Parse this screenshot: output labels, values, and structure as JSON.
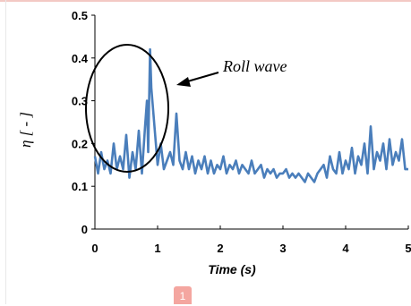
{
  "chart_data": {
    "type": "line",
    "title": "",
    "xlabel": "Time (s)",
    "ylabel": "η [ - ]",
    "xlim": [
      0,
      5
    ],
    "ylim": [
      0,
      0.5
    ],
    "xticks": [
      "0",
      "1",
      "2",
      "3",
      "4",
      "5"
    ],
    "yticks": [
      "0",
      "0.1",
      "0.2",
      "0.3",
      "0.4",
      "0.5"
    ],
    "grid": false,
    "legend": "none",
    "series": [
      {
        "color": "#4a7ebb",
        "x": [
          0,
          0.05,
          0.1,
          0.15,
          0.2,
          0.25,
          0.3,
          0.35,
          0.4,
          0.45,
          0.5,
          0.55,
          0.6,
          0.65,
          0.7,
          0.75,
          0.8,
          0.83,
          0.85,
          0.88,
          0.9,
          0.95,
          1.0,
          1.05,
          1.1,
          1.15,
          1.2,
          1.25,
          1.3,
          1.35,
          1.4,
          1.45,
          1.5,
          1.55,
          1.6,
          1.65,
          1.7,
          1.75,
          1.8,
          1.85,
          1.9,
          1.95,
          2.0,
          2.05,
          2.1,
          2.15,
          2.2,
          2.25,
          2.3,
          2.35,
          2.4,
          2.45,
          2.5,
          2.55,
          2.6,
          2.65,
          2.7,
          2.75,
          2.8,
          2.85,
          2.9,
          2.95,
          3.0,
          3.05,
          3.1,
          3.15,
          3.2,
          3.25,
          3.3,
          3.35,
          3.4,
          3.45,
          3.5,
          3.55,
          3.6,
          3.65,
          3.7,
          3.75,
          3.8,
          3.85,
          3.9,
          3.95,
          4.0,
          4.05,
          4.1,
          4.15,
          4.2,
          4.25,
          4.3,
          4.35,
          4.4,
          4.45,
          4.5,
          4.55,
          4.6,
          4.65,
          4.7,
          4.75,
          4.8,
          4.85,
          4.9,
          4.95,
          5.0
        ],
        "y": [
          0.17,
          0.13,
          0.18,
          0.14,
          0.16,
          0.13,
          0.2,
          0.14,
          0.17,
          0.14,
          0.22,
          0.12,
          0.18,
          0.14,
          0.23,
          0.13,
          0.24,
          0.3,
          0.18,
          0.42,
          0.33,
          0.24,
          0.15,
          0.2,
          0.14,
          0.16,
          0.18,
          0.15,
          0.27,
          0.16,
          0.14,
          0.18,
          0.14,
          0.17,
          0.13,
          0.16,
          0.14,
          0.17,
          0.13,
          0.16,
          0.13,
          0.15,
          0.14,
          0.17,
          0.13,
          0.15,
          0.14,
          0.16,
          0.13,
          0.15,
          0.14,
          0.13,
          0.16,
          0.13,
          0.14,
          0.15,
          0.12,
          0.14,
          0.13,
          0.14,
          0.12,
          0.13,
          0.13,
          0.14,
          0.12,
          0.13,
          0.12,
          0.13,
          0.12,
          0.11,
          0.13,
          0.12,
          0.11,
          0.13,
          0.14,
          0.15,
          0.12,
          0.17,
          0.14,
          0.13,
          0.18,
          0.13,
          0.16,
          0.14,
          0.19,
          0.13,
          0.17,
          0.15,
          0.2,
          0.13,
          0.24,
          0.14,
          0.18,
          0.16,
          0.2,
          0.14,
          0.21,
          0.15,
          0.18,
          0.16,
          0.21,
          0.14,
          0.14
        ]
      }
    ],
    "annotation": {
      "text": "Roll wave"
    }
  },
  "page_badge": "1"
}
